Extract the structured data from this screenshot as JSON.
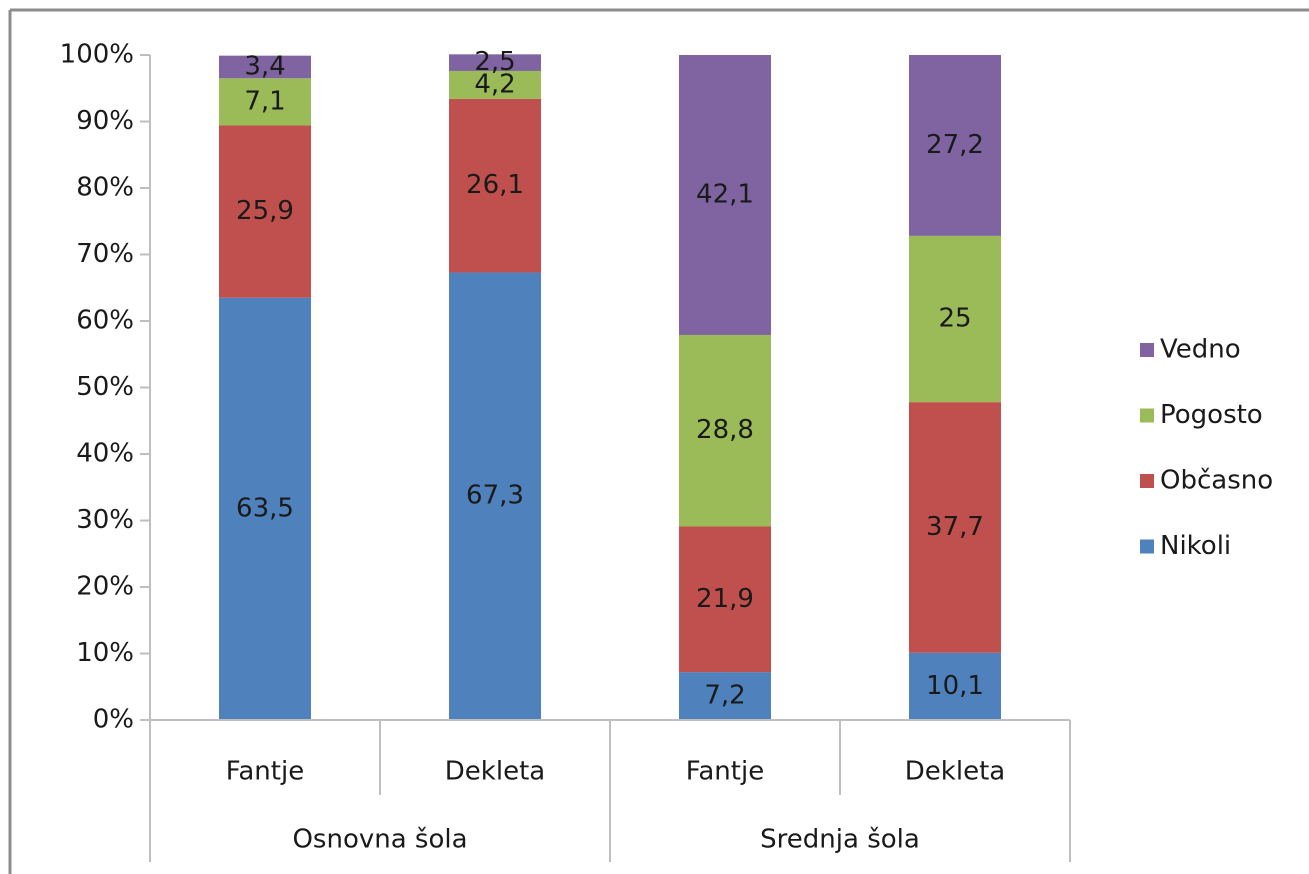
{
  "chart_data": {
    "type": "stacked_bar",
    "categories": [
      "Fantje",
      "Dekleta",
      "Fantje",
      "Dekleta"
    ],
    "group_labels": [
      "Osnovna šola",
      "Srednja šola"
    ],
    "series": [
      {
        "name": "Nikoli",
        "color": "#4f81bd",
        "values": [
          63.5,
          67.3,
          7.2,
          10.1
        ],
        "value_labels": [
          "63,5",
          "67,3",
          "7,2",
          "10,1"
        ]
      },
      {
        "name": "Občasno",
        "color": "#c0504d",
        "values": [
          25.9,
          26.1,
          21.9,
          37.7
        ],
        "value_labels": [
          "25,9",
          "26,1",
          "21,9",
          "37,7"
        ]
      },
      {
        "name": "Pogosto",
        "color": "#9bbb59",
        "values": [
          7.1,
          4.2,
          28.8,
          25
        ],
        "value_labels": [
          "7,1",
          "4,2",
          "28,8",
          "25"
        ]
      },
      {
        "name": "Vedno",
        "color": "#8064a2",
        "values": [
          3.4,
          2.5,
          42.1,
          27.2
        ],
        "value_labels": [
          "3,4",
          "2,5",
          "42,1",
          "27,2"
        ]
      }
    ],
    "ylim": [
      0,
      100
    ],
    "yticks": [
      {
        "value": 0,
        "label": "0%"
      },
      {
        "value": 10,
        "label": "10%"
      },
      {
        "value": 20,
        "label": "20%"
      },
      {
        "value": 30,
        "label": "30%"
      },
      {
        "value": 40,
        "label": "40%"
      },
      {
        "value": 50,
        "label": "50%"
      },
      {
        "value": 60,
        "label": "60%"
      },
      {
        "value": 70,
        "label": "70%"
      },
      {
        "value": 80,
        "label": "80%"
      },
      {
        "value": 90,
        "label": "90%"
      },
      {
        "value": 100,
        "label": "100%"
      }
    ],
    "legend": "right"
  }
}
